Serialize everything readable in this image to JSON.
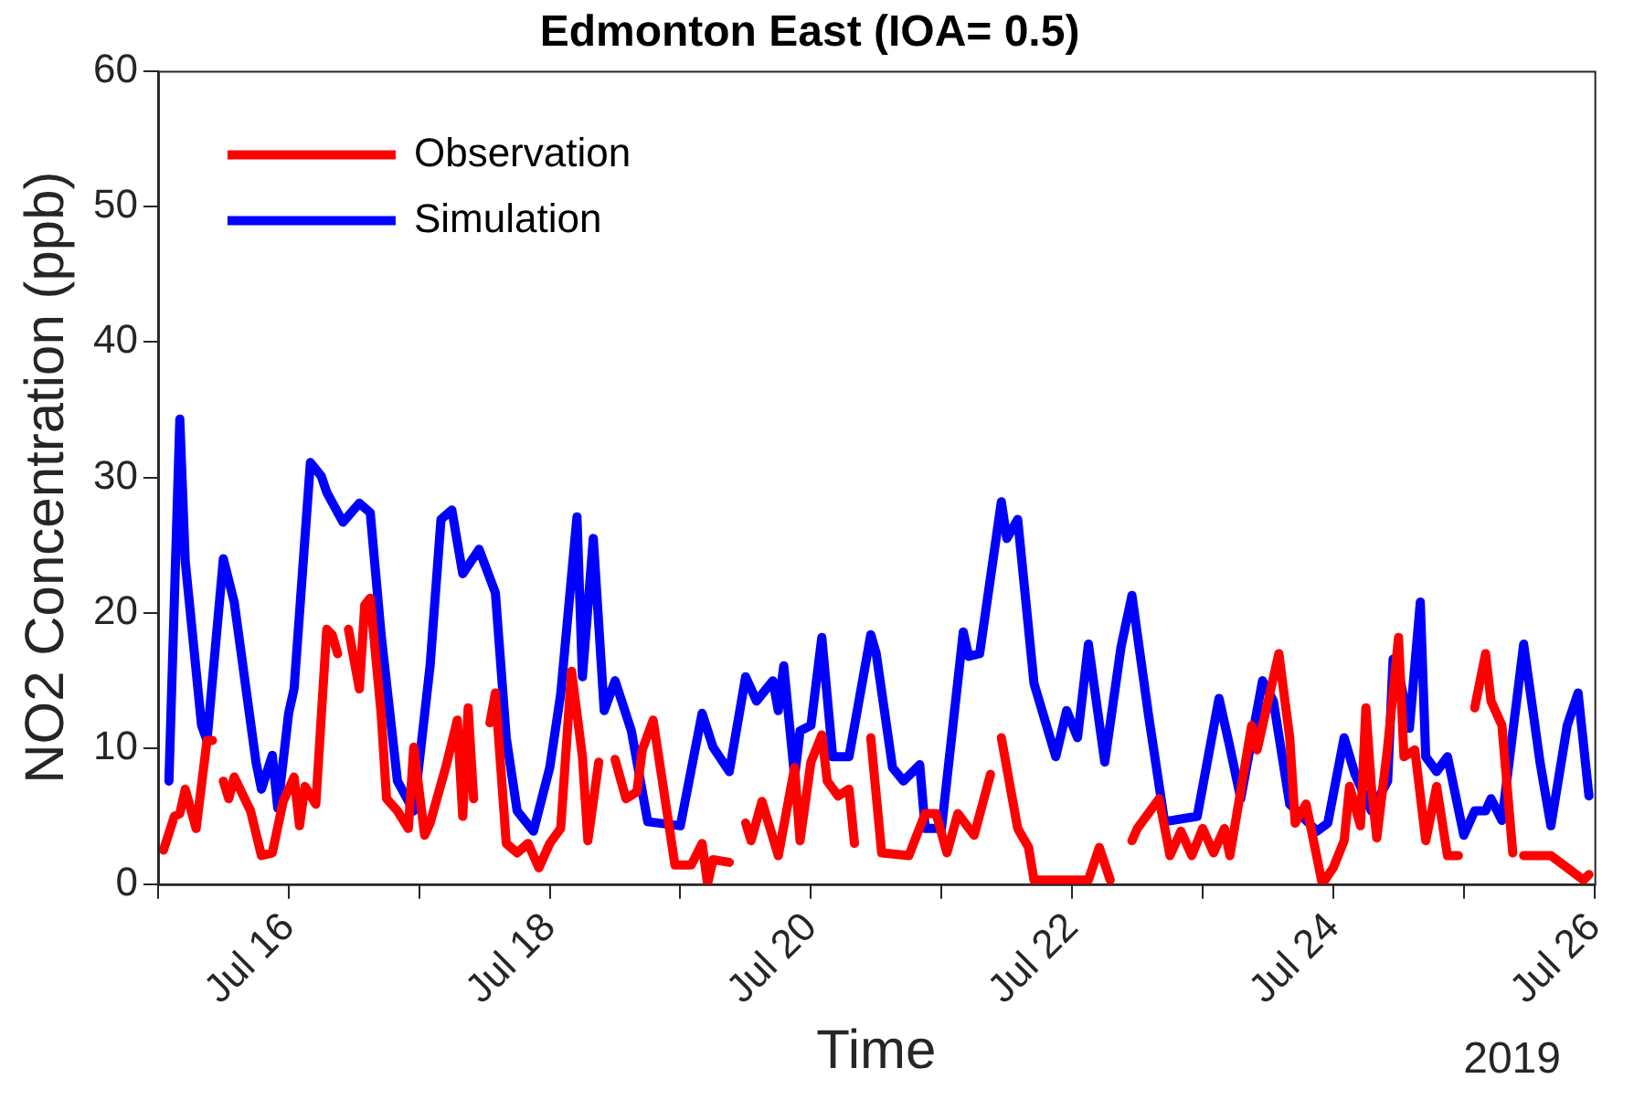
{
  "chart_data": {
    "type": "line",
    "title": "Edmonton East (IOA= 0.5)",
    "xlabel": "Time",
    "ylabel": "NO2 Concentration (ppb)",
    "annotations": [
      "2019"
    ],
    "xlim": [
      "2019-07-15T00:00",
      "2019-07-26T00:00"
    ],
    "xticks": [
      {
        "value": "2019-07-15",
        "label": null
      },
      {
        "value": "2019-07-16",
        "label": "Jul 16"
      },
      {
        "value": "2019-07-17",
        "label": null
      },
      {
        "value": "2019-07-18",
        "label": "Jul 18"
      },
      {
        "value": "2019-07-19",
        "label": null
      },
      {
        "value": "2019-07-20",
        "label": "Jul 20"
      },
      {
        "value": "2019-07-21",
        "label": null
      },
      {
        "value": "2019-07-22",
        "label": "Jul 22"
      },
      {
        "value": "2019-07-23",
        "label": null
      },
      {
        "value": "2019-07-24",
        "label": "Jul 24"
      },
      {
        "value": "2019-07-25",
        "label": null
      },
      {
        "value": "2019-07-26",
        "label": "Jul 26"
      }
    ],
    "ylim": [
      0,
      60
    ],
    "yticks": [
      0,
      10,
      20,
      30,
      40,
      50,
      60
    ],
    "legend": "top left",
    "marker": "none",
    "line_style": "solid",
    "series": [
      {
        "name": "Observation",
        "color": "#ff0000",
        "x": [
          "2019-07-15T01:00",
          "2019-07-15T03:00",
          "2019-07-15T04:00",
          "2019-07-15T05:00",
          "2019-07-15T07:00",
          "2019-07-15T09:00",
          "2019-07-15T10:00",
          "2019-07-15T11:00",
          "2019-07-15T12:00",
          "2019-07-15T13:00",
          "2019-07-15T14:00",
          "2019-07-15T17:00",
          "2019-07-15T19:00",
          "2019-07-15T21:00",
          "2019-07-15T23:00",
          "2019-07-16T01:00",
          "2019-07-16T02:00",
          "2019-07-16T03:00",
          "2019-07-16T05:00",
          "2019-07-16T07:00",
          "2019-07-16T08:00",
          "2019-07-16T09:00",
          "2019-07-16T10:00",
          "2019-07-16T11:00",
          "2019-07-16T13:00",
          "2019-07-16T14:00",
          "2019-07-16T15:00",
          "2019-07-16T17:00",
          "2019-07-16T18:00",
          "2019-07-16T20:00",
          "2019-07-16T22:00",
          "2019-07-16T23:00",
          "2019-07-17T01:00",
          "2019-07-17T02:00",
          "2019-07-17T05:00",
          "2019-07-17T07:00",
          "2019-07-17T08:00",
          "2019-07-17T09:00",
          "2019-07-17T10:00",
          "2019-07-17T12:00",
          "2019-07-17T13:00",
          "2019-07-17T14:00",
          "2019-07-17T16:00",
          "2019-07-17T18:00",
          "2019-07-17T20:00",
          "2019-07-17T22:00",
          "2019-07-18T00:00",
          "2019-07-18T02:00",
          "2019-07-18T04:00",
          "2019-07-18T06:00",
          "2019-07-18T07:00",
          "2019-07-18T09:00",
          "2019-07-18T10:00",
          "2019-07-18T12:00",
          "2019-07-18T14:00",
          "2019-07-18T16:00",
          "2019-07-18T17:00",
          "2019-07-18T19:00",
          "2019-07-18T22:00",
          "2019-07-18T23:00",
          "2019-07-19T02:00",
          "2019-07-19T04:00",
          "2019-07-19T05:00",
          "2019-07-19T06:00",
          "2019-07-19T09:00",
          "2019-07-19T10:00",
          "2019-07-19T12:00",
          "2019-07-19T13:00",
          "2019-07-19T15:00",
          "2019-07-19T18:00",
          "2019-07-19T21:00",
          "2019-07-19T22:00",
          "2019-07-20T00:00",
          "2019-07-20T02:00",
          "2019-07-20T03:00",
          "2019-07-20T05:00",
          "2019-07-20T07:00",
          "2019-07-20T08:00",
          "2019-07-20T09:00",
          "2019-07-20T11:00",
          "2019-07-20T13:00",
          "2019-07-20T18:00",
          "2019-07-20T21:00",
          "2019-07-20T23:00",
          "2019-07-21T01:00",
          "2019-07-21T03:00",
          "2019-07-21T06:00",
          "2019-07-21T09:00",
          "2019-07-21T10:00",
          "2019-07-21T11:00",
          "2019-07-21T14:00",
          "2019-07-21T16:00",
          "2019-07-21T17:00",
          "2019-07-21T20:00",
          "2019-07-22T00:00",
          "2019-07-22T03:00",
          "2019-07-22T05:00",
          "2019-07-22T07:00",
          "2019-07-22T08:00",
          "2019-07-22T11:00",
          "2019-07-22T12:00",
          "2019-07-22T16:00",
          "2019-07-22T18:00",
          "2019-07-22T20:00",
          "2019-07-22T22:00",
          "2019-07-23T00:00",
          "2019-07-23T02:00",
          "2019-07-23T04:00",
          "2019-07-23T05:00",
          "2019-07-23T09:00",
          "2019-07-23T10:00",
          "2019-07-23T14:00",
          "2019-07-23T16:00",
          "2019-07-23T17:00",
          "2019-07-23T19:00",
          "2019-07-23T22:00",
          "2019-07-24T00:00",
          "2019-07-24T02:00",
          "2019-07-24T03:00",
          "2019-07-24T05:00",
          "2019-07-24T06:00",
          "2019-07-24T07:00",
          "2019-07-24T08:00",
          "2019-07-24T10:00",
          "2019-07-24T12:00",
          "2019-07-24T13:00",
          "2019-07-24T15:00",
          "2019-07-24T17:00",
          "2019-07-24T19:00",
          "2019-07-24T21:00",
          "2019-07-24T23:00",
          "2019-07-25T00:00",
          "2019-07-25T02:00",
          "2019-07-25T04:00",
          "2019-07-25T05:00",
          "2019-07-25T07:00",
          "2019-07-25T09:00",
          "2019-07-25T10:00",
          "2019-07-25T11:00",
          "2019-07-25T16:00",
          "2019-07-25T19:00",
          "2019-07-25T22:00",
          "2019-07-25T23:00"
        ],
        "values": [
          2.5,
          5.0,
          5.2,
          7.0,
          4.1,
          10.6,
          10.6,
          null,
          7.6,
          6.3,
          7.9,
          5.4,
          2.1,
          2.3,
          6.1,
          7.9,
          4.3,
          7.2,
          5.9,
          18.8,
          18.4,
          17.0,
          null,
          18.8,
          14.4,
          20.6,
          21.1,
          12.6,
          6.3,
          5.4,
          4.1,
          10.1,
          3.6,
          4.5,
          8.8,
          12.1,
          5.0,
          13.0,
          6.3,
          null,
          11.9,
          14.1,
          3.0,
          2.3,
          3.0,
          1.2,
          3.0,
          4.1,
          15.7,
          9.4,
          3.2,
          9.0,
          null,
          9.2,
          6.3,
          6.8,
          9.9,
          12.1,
          4.1,
          1.4,
          1.4,
          3.0,
          0.0,
          1.8,
          1.6,
          null,
          4.5,
          3.2,
          6.1,
          2.1,
          8.6,
          3.2,
          9.0,
          11.0,
          7.6,
          6.5,
          7.0,
          3.0,
          null,
          10.8,
          2.3,
          2.1,
          5.2,
          5.2,
          2.3,
          5.2,
          3.6,
          8.1,
          null,
          10.8,
          4.1,
          2.7,
          0.3,
          0.3,
          0.3,
          0.3,
          2.7,
          0.3,
          null,
          3.2,
          4.1,
          6.3,
          2.1,
          3.9,
          2.1,
          4.1,
          2.3,
          4.1,
          2.1,
          11.7,
          9.9,
          17.0,
          10.8,
          4.5,
          5.9,
          0.0,
          1.2,
          3.2,
          7.2,
          4.3,
          13.0,
          7.2,
          3.4,
          10.1,
          18.2,
          9.4,
          9.9,
          3.2,
          7.2,
          2.1,
          2.1,
          null,
          13.0,
          17.0,
          13.5,
          11.7,
          2.3,
          null,
          2.1,
          2.1,
          1.2,
          0.3,
          0.7
        ]
      },
      {
        "name": "Simulation",
        "color": "#0000ff",
        "x": [
          "2019-07-15T02:00",
          "2019-07-15T04:00",
          "2019-07-15T05:00",
          "2019-07-15T08:00",
          "2019-07-15T09:00",
          "2019-07-15T12:00",
          "2019-07-15T14:00",
          "2019-07-15T18:00",
          "2019-07-15T19:00",
          "2019-07-15T21:00",
          "2019-07-15T22:00",
          "2019-07-16T00:00",
          "2019-07-16T01:00",
          "2019-07-16T04:00",
          "2019-07-16T06:00",
          "2019-07-16T07:00",
          "2019-07-16T10:00",
          "2019-07-16T13:00",
          "2019-07-16T15:00",
          "2019-07-16T17:00",
          "2019-07-16T20:00",
          "2019-07-16T23:00",
          "2019-07-17T02:00",
          "2019-07-17T04:00",
          "2019-07-17T06:00",
          "2019-07-17T08:00",
          "2019-07-17T11:00",
          "2019-07-17T14:00",
          "2019-07-17T16:00",
          "2019-07-17T18:00",
          "2019-07-17T21:00",
          "2019-07-18T00:00",
          "2019-07-18T02:00",
          "2019-07-18T05:00",
          "2019-07-18T06:00",
          "2019-07-18T08:00",
          "2019-07-18T10:00",
          "2019-07-18T12:00",
          "2019-07-18T15:00",
          "2019-07-18T18:00",
          "2019-07-19T00:00",
          "2019-07-19T04:00",
          "2019-07-19T06:00",
          "2019-07-19T09:00",
          "2019-07-19T12:00",
          "2019-07-19T14:00",
          "2019-07-19T17:00",
          "2019-07-19T18:00",
          "2019-07-19T19:00",
          "2019-07-19T21:00",
          "2019-07-19T22:00",
          "2019-07-20T00:00",
          "2019-07-20T02:00",
          "2019-07-20T04:00",
          "2019-07-20T07:00",
          "2019-07-20T11:00",
          "2019-07-20T12:00",
          "2019-07-20T15:00",
          "2019-07-20T17:00",
          "2019-07-20T20:00",
          "2019-07-20T21:00",
          "2019-07-21T00:00",
          "2019-07-21T04:00",
          "2019-07-21T05:00",
          "2019-07-21T07:00",
          "2019-07-21T11:00",
          "2019-07-21T12:00",
          "2019-07-21T14:00",
          "2019-07-21T17:00",
          "2019-07-21T21:00",
          "2019-07-21T23:00",
          "2019-07-22T01:00",
          "2019-07-22T03:00",
          "2019-07-22T06:00",
          "2019-07-22T09:00",
          "2019-07-22T11:00",
          "2019-07-22T14:00",
          "2019-07-22T17:00",
          "2019-07-22T23:00",
          "2019-07-23T03:00",
          "2019-07-23T05:00",
          "2019-07-23T07:00",
          "2019-07-23T11:00",
          "2019-07-23T13:00",
          "2019-07-23T16:00",
          "2019-07-23T21:00",
          "2019-07-23T23:00",
          "2019-07-24T02:00",
          "2019-07-24T04:00",
          "2019-07-24T07:00",
          "2019-07-24T10:00",
          "2019-07-24T11:00",
          "2019-07-24T12:00",
          "2019-07-24T14:00",
          "2019-07-24T16:00",
          "2019-07-24T17:00",
          "2019-07-24T19:00",
          "2019-07-24T21:00",
          "2019-07-25T00:00",
          "2019-07-25T02:00",
          "2019-07-25T04:00",
          "2019-07-25T05:00",
          "2019-07-25T07:00",
          "2019-07-25T09:00",
          "2019-07-25T11:00",
          "2019-07-25T14:00",
          "2019-07-25T16:00",
          "2019-07-25T19:00",
          "2019-07-25T21:00",
          "2019-07-25T23:00"
        ],
        "values": [
          7.6,
          34.3,
          23.8,
          11.7,
          10.6,
          24.0,
          20.8,
          9.0,
          7.0,
          9.5,
          5.6,
          12.6,
          14.4,
          31.1,
          30.1,
          28.9,
          26.7,
          28.1,
          27.4,
          18.4,
          7.6,
          5.4,
          16.1,
          26.9,
          27.6,
          22.9,
          24.7,
          21.5,
          10.8,
          5.4,
          3.9,
          8.6,
          14.0,
          27.1,
          15.3,
          25.5,
          12.8,
          15.0,
          11.3,
          4.6,
          4.3,
          12.6,
          10.1,
          8.3,
          15.3,
          13.5,
          15.0,
          12.8,
          16.1,
          7.9,
          11.3,
          11.7,
          18.2,
          9.4,
          9.4,
          18.4,
          17.0,
          8.6,
          7.6,
          8.8,
          4.1,
          4.1,
          18.6,
          16.8,
          17.0,
          28.2,
          25.5,
          26.9,
          14.8,
          9.4,
          12.8,
          10.8,
          17.7,
          9.0,
          17.5,
          21.3,
          12.6,
          4.6,
          5.0,
          13.7,
          10.1,
          6.3,
          15.0,
          13.5,
          5.9,
          3.9,
          4.5,
          10.8,
          8.1,
          5.4,
          7.6,
          16.6,
          15.7,
          11.5,
          20.8,
          9.4,
          8.3,
          9.4,
          3.6,
          5.4,
          5.4,
          6.3,
          4.7,
          11.2,
          17.7,
          9.0,
          4.3,
          11.7,
          14.1,
          6.5
        ]
      }
    ]
  }
}
